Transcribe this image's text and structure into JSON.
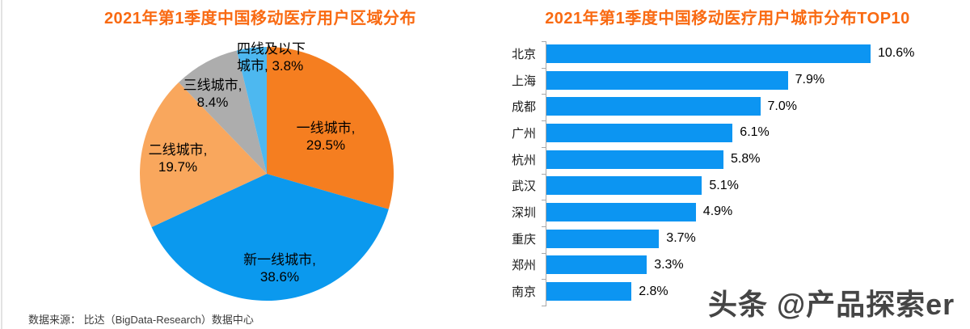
{
  "page": {
    "source_note": "数据来源： 比达（BigData-Research）数据中心",
    "watermark": "头条 @产品探索er"
  },
  "colors": {
    "title_orange": "#f96a12",
    "bar_blue": "#0c95f2",
    "axis_gray": "#a8a8a8",
    "pie_first_tier": "#f57e20",
    "pie_new_first_tier": "#0b99ee",
    "pie_second_tier": "#f9a75d",
    "pie_third_tier": "#adadad",
    "pie_fourth_tier": "#4db8f0"
  },
  "chart_data": [
    {
      "type": "pie",
      "title": "2021年第1季度中国移动医疗用户区域分布",
      "slices": [
        {
          "name": "一线城市",
          "value": 29.5,
          "label_line1": "一线城市,",
          "label_line2": "29.5%",
          "color": "#f57e20"
        },
        {
          "name": "新一线城市",
          "value": 38.6,
          "label_line1": "新一线城市,",
          "label_line2": "38.6%",
          "color": "#0b99ee"
        },
        {
          "name": "二线城市",
          "value": 19.7,
          "label_line1": "二线城市,",
          "label_line2": "19.7%",
          "color": "#f9a75d"
        },
        {
          "name": "三线城市",
          "value": 8.4,
          "label_line1": "三线城市,",
          "label_line2": "8.4%",
          "color": "#adadad"
        },
        {
          "name": "四线及以下城市",
          "value": 3.8,
          "label_line1": "四线及以下",
          "label_line2": "城市, 3.8%",
          "color": "#4db8f0"
        }
      ],
      "start_angle_deg": 0,
      "direction": "clockwise",
      "legend": "none",
      "label_style": "category-name-and-percent"
    },
    {
      "type": "bar",
      "orientation": "horizontal",
      "title": "2021年第1季度中国移动医疗用户城市分布TOP10",
      "categories": [
        "北京",
        "上海",
        "成都",
        "广州",
        "杭州",
        "武汉",
        "深圳",
        "重庆",
        "郑州",
        "南京"
      ],
      "values": [
        10.6,
        7.9,
        7.0,
        6.1,
        5.8,
        5.1,
        4.9,
        3.7,
        3.3,
        2.8
      ],
      "value_labels": [
        "10.6%",
        "7.9%",
        "7.0%",
        "6.1%",
        "5.8%",
        "5.1%",
        "4.9%",
        "3.7%",
        "3.3%",
        "2.8%"
      ],
      "xlabel": "",
      "ylabel": "",
      "xlim": [
        0,
        10.6
      ],
      "grid": false,
      "legend": "none"
    }
  ]
}
